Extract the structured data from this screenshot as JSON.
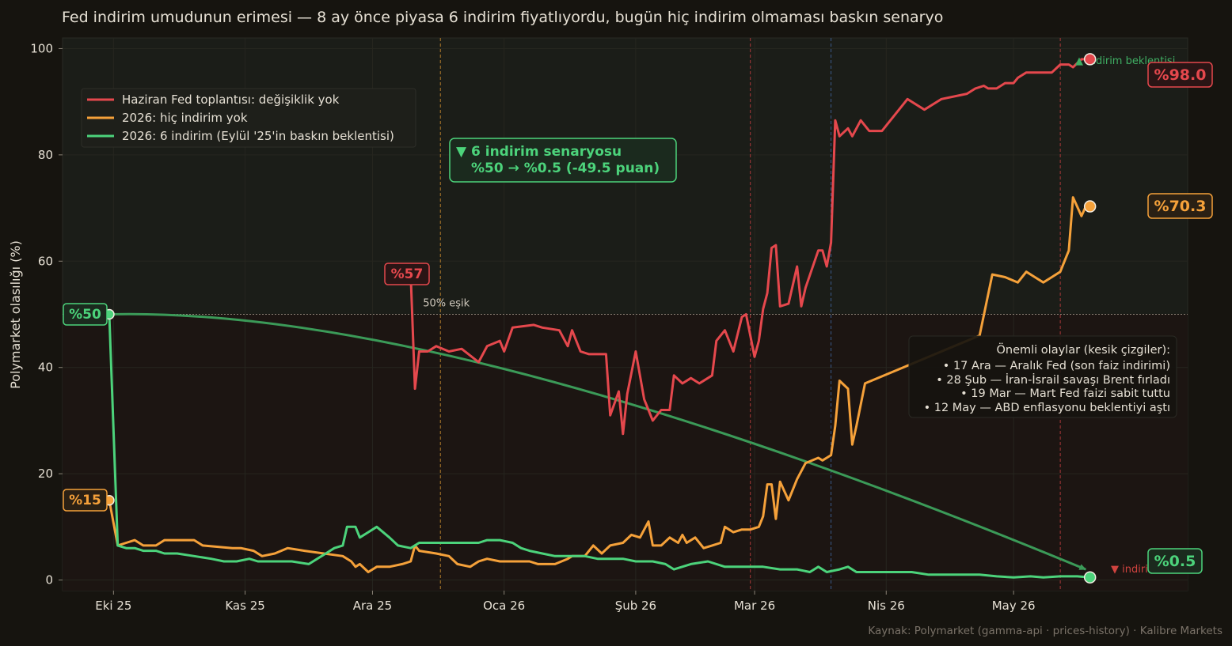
{
  "title": "Fed indirim umudunun erimesi — 8 ay önce piyasa 6 indirim fiyatlıyordu, bugün hiç indirim olmaması baskın senaryo",
  "source": "Kaynak: Polymarket (gamma-api · prices-history)  ·  Kalibre Markets",
  "colors": {
    "background": "#16140f",
    "plot_upper": "#1b1d18",
    "plot_lower": "#1c1512",
    "red": "#e5484d",
    "orange": "#f5a13a",
    "green": "#4cd37b",
    "text": "#e6e0d4",
    "muted": "#8a8276"
  },
  "legend": {
    "items": [
      {
        "label": "Haziran Fed toplantısı: değişiklik yok",
        "color": "#e5484d"
      },
      {
        "label": "2026: hiç indirim yok",
        "color": "#f5a13a"
      },
      {
        "label": "2026: 6 indirim (Eylül '25'in baskın beklentisi)",
        "color": "#4cd37b"
      }
    ]
  },
  "callout": {
    "line1": "▼ 6 indirim senaryosu",
    "line2": "%50 → %0.5  (-49.5 puan)"
  },
  "events_box": {
    "heading": "Önemli olaylar (kesik çizgiler):",
    "items": [
      "• 17 Ara — Aralık Fed (son faiz indirimi)",
      "• 28 Şub — İran-İsrail savaşı Brent fırladı",
      "• 19 Mar — Mart Fed faizi sabit tuttu",
      "• 12 May — ABD enflasyonu beklentiyi aştı"
    ]
  },
  "labels": {
    "threshold": "50% eşik",
    "green_start": "%50",
    "orange_start": "%15",
    "red_start": "%57",
    "red_end": "%98.0",
    "orange_end": "%70.3",
    "green_end": "%0.5",
    "arrow_up": "▲ indirim beklentisi",
    "arrow_down": "▼ indirim"
  },
  "chart_data": {
    "type": "line",
    "title": "Fed indirim umudunun erimesi — 8 ay önce piyasa 6 indirim fiyatlıyordu, bugün hiç indirim olmaması baskın senaryo",
    "xlabel": "",
    "ylabel": "Polymarket olasılığı (%)",
    "ylim": [
      -2,
      102
    ],
    "yticks": [
      0,
      20,
      40,
      60,
      80,
      100
    ],
    "xlim": [
      "2025-09-19",
      "2026-06-11"
    ],
    "xticks": [
      {
        "date": "2025-10-01",
        "label": "Eki 25"
      },
      {
        "date": "2025-11-01",
        "label": "Kas 25"
      },
      {
        "date": "2025-12-01",
        "label": "Ara 25"
      },
      {
        "date": "2026-01-01",
        "label": "Oca 26"
      },
      {
        "date": "2026-02-01",
        "label": "Şub 26"
      },
      {
        "date": "2026-03-01",
        "label": "Mar 26"
      },
      {
        "date": "2026-04-01",
        "label": "Nis 26"
      },
      {
        "date": "2026-05-01",
        "label": "May 26"
      }
    ],
    "threshold": 50,
    "legend_position": "upper-left",
    "grid": true,
    "events": [
      {
        "date": "2025-12-17",
        "color": "#b07b2a"
      },
      {
        "date": "2026-02-28",
        "color": "#a83838"
      },
      {
        "date": "2026-03-19",
        "color": "#3a5a8a"
      },
      {
        "date": "2026-05-12",
        "color": "#a83838"
      }
    ],
    "series": [
      {
        "name": "Haziran Fed toplantısı: değişiklik yok",
        "color": "#e5484d",
        "points": [
          [
            "2025-12-10",
            57.5
          ],
          [
            "2025-12-11",
            36
          ],
          [
            "2025-12-12",
            43
          ],
          [
            "2025-12-14",
            43
          ],
          [
            "2025-12-16",
            44
          ],
          [
            "2025-12-19",
            43
          ],
          [
            "2025-12-22",
            43.5
          ],
          [
            "2025-12-26",
            41
          ],
          [
            "2025-12-28",
            44
          ],
          [
            "2025-12-31",
            45
          ],
          [
            "2026-01-01",
            43
          ],
          [
            "2026-01-03",
            47.5
          ],
          [
            "2026-01-08",
            48
          ],
          [
            "2026-01-10",
            47.5
          ],
          [
            "2026-01-14",
            47
          ],
          [
            "2026-01-16",
            44
          ],
          [
            "2026-01-17",
            47
          ],
          [
            "2026-01-19",
            43
          ],
          [
            "2026-01-21",
            42.5
          ],
          [
            "2026-01-25",
            42.5
          ],
          [
            "2026-01-26",
            31
          ],
          [
            "2026-01-28",
            35.5
          ],
          [
            "2026-01-29",
            27.5
          ],
          [
            "2026-01-30",
            35
          ],
          [
            "2026-02-01",
            43
          ],
          [
            "2026-02-03",
            34
          ],
          [
            "2026-02-05",
            30
          ],
          [
            "2026-02-07",
            32
          ],
          [
            "2026-02-09",
            32
          ],
          [
            "2026-02-10",
            38.5
          ],
          [
            "2026-02-12",
            37
          ],
          [
            "2026-02-14",
            38
          ],
          [
            "2026-02-16",
            37
          ],
          [
            "2026-02-19",
            38.5
          ],
          [
            "2026-02-20",
            45
          ],
          [
            "2026-02-22",
            47
          ],
          [
            "2026-02-24",
            43
          ],
          [
            "2026-02-26",
            49.5
          ],
          [
            "2026-02-27",
            50
          ],
          [
            "2026-03-01",
            42
          ],
          [
            "2026-03-02",
            45
          ],
          [
            "2026-03-03",
            51
          ],
          [
            "2026-03-04",
            54
          ],
          [
            "2026-03-05",
            62.5
          ],
          [
            "2026-03-06",
            63
          ],
          [
            "2026-03-07",
            51.5
          ],
          [
            "2026-03-09",
            52
          ],
          [
            "2026-03-11",
            59
          ],
          [
            "2026-03-12",
            51.5
          ],
          [
            "2026-03-13",
            55
          ],
          [
            "2026-03-16",
            62
          ],
          [
            "2026-03-17",
            62
          ],
          [
            "2026-03-18",
            59
          ],
          [
            "2026-03-19",
            63.5
          ],
          [
            "2026-03-20",
            86.5
          ],
          [
            "2026-03-21",
            83.5
          ],
          [
            "2026-03-23",
            85
          ],
          [
            "2026-03-24",
            83.5
          ],
          [
            "2026-03-26",
            86.5
          ],
          [
            "2026-03-28",
            84.5
          ],
          [
            "2026-03-31",
            84.5
          ],
          [
            "2026-04-06",
            90.5
          ],
          [
            "2026-04-10",
            88.5
          ],
          [
            "2026-04-14",
            90.5
          ],
          [
            "2026-04-20",
            91.5
          ],
          [
            "2026-04-22",
            92.5
          ],
          [
            "2026-04-24",
            93
          ],
          [
            "2026-04-25",
            92.5
          ],
          [
            "2026-04-27",
            92.5
          ],
          [
            "2026-04-29",
            93.5
          ],
          [
            "2026-05-01",
            93.5
          ],
          [
            "2026-05-02",
            94.5
          ],
          [
            "2026-05-04",
            95.5
          ],
          [
            "2026-05-10",
            95.5
          ],
          [
            "2026-05-12",
            97
          ],
          [
            "2026-05-14",
            97
          ],
          [
            "2026-05-15",
            96.5
          ],
          [
            "2026-05-17",
            98
          ],
          [
            "2026-05-19",
            98
          ]
        ]
      },
      {
        "name": "2026: hiç indirim yok",
        "color": "#f5a13a",
        "points": [
          [
            "2025-09-30",
            15
          ],
          [
            "2025-10-02",
            6.5
          ],
          [
            "2025-10-04",
            7
          ],
          [
            "2025-10-06",
            7.5
          ],
          [
            "2025-10-08",
            6.5
          ],
          [
            "2025-10-11",
            6.5
          ],
          [
            "2025-10-13",
            7.5
          ],
          [
            "2025-10-20",
            7.5
          ],
          [
            "2025-10-22",
            6.5
          ],
          [
            "2025-10-29",
            6
          ],
          [
            "2025-10-31",
            6
          ],
          [
            "2025-11-03",
            5.5
          ],
          [
            "2025-11-05",
            4.5
          ],
          [
            "2025-11-08",
            5
          ],
          [
            "2025-11-11",
            6
          ],
          [
            "2025-11-15",
            5.5
          ],
          [
            "2025-11-24",
            4.5
          ],
          [
            "2025-11-26",
            3.5
          ],
          [
            "2025-11-27",
            2.5
          ],
          [
            "2025-11-28",
            3
          ],
          [
            "2025-11-30",
            1.5
          ],
          [
            "2025-12-02",
            2.5
          ],
          [
            "2025-12-05",
            2.5
          ],
          [
            "2025-12-08",
            3
          ],
          [
            "2025-12-10",
            3.5
          ],
          [
            "2025-12-11",
            6.5
          ],
          [
            "2025-12-12",
            5.5
          ],
          [
            "2025-12-16",
            5
          ],
          [
            "2025-12-19",
            4.5
          ],
          [
            "2025-12-21",
            3
          ],
          [
            "2025-12-24",
            2.5
          ],
          [
            "2025-12-26",
            3.5
          ],
          [
            "2025-12-28",
            4
          ],
          [
            "2025-12-31",
            3.5
          ],
          [
            "2026-01-04",
            3.5
          ],
          [
            "2026-01-07",
            3.5
          ],
          [
            "2026-01-09",
            3
          ],
          [
            "2026-01-13",
            3
          ],
          [
            "2026-01-16",
            4
          ],
          [
            "2026-01-17",
            4.5
          ],
          [
            "2026-01-20",
            4.5
          ],
          [
            "2026-01-22",
            6.5
          ],
          [
            "2026-01-24",
            5
          ],
          [
            "2026-01-26",
            6.5
          ],
          [
            "2026-01-29",
            7
          ],
          [
            "2026-01-31",
            8.5
          ],
          [
            "2026-02-02",
            8
          ],
          [
            "2026-02-04",
            11
          ],
          [
            "2026-02-05",
            6.5
          ],
          [
            "2026-02-07",
            6.5
          ],
          [
            "2026-02-09",
            8
          ],
          [
            "2026-02-11",
            7
          ],
          [
            "2026-02-12",
            8.5
          ],
          [
            "2026-02-13",
            7
          ],
          [
            "2026-02-15",
            8
          ],
          [
            "2026-02-17",
            6
          ],
          [
            "2026-02-19",
            6.5
          ],
          [
            "2026-02-21",
            7
          ],
          [
            "2026-02-22",
            10
          ],
          [
            "2026-02-24",
            9
          ],
          [
            "2026-02-26",
            9.5
          ],
          [
            "2026-02-28",
            9.5
          ],
          [
            "2026-03-02",
            10
          ],
          [
            "2026-03-03",
            12
          ],
          [
            "2026-03-04",
            18
          ],
          [
            "2026-03-05",
            18
          ],
          [
            "2026-03-06",
            11.5
          ],
          [
            "2026-03-07",
            18.5
          ],
          [
            "2026-03-09",
            15
          ],
          [
            "2026-03-11",
            19
          ],
          [
            "2026-03-13",
            22
          ],
          [
            "2026-03-16",
            23
          ],
          [
            "2026-03-17",
            22.5
          ],
          [
            "2026-03-19",
            23.5
          ],
          [
            "2026-03-20",
            29
          ],
          [
            "2026-03-21",
            37.5
          ],
          [
            "2026-03-23",
            36
          ],
          [
            "2026-03-24",
            25.5
          ],
          [
            "2026-03-25",
            29
          ],
          [
            "2026-03-27",
            37
          ],
          [
            "2026-04-23",
            46
          ],
          [
            "2026-04-26",
            57.5
          ],
          [
            "2026-04-29",
            57
          ],
          [
            "2026-05-02",
            56
          ],
          [
            "2026-05-04",
            58
          ],
          [
            "2026-05-06",
            57
          ],
          [
            "2026-05-08",
            56
          ],
          [
            "2026-05-10",
            57
          ],
          [
            "2026-05-12",
            58
          ],
          [
            "2026-05-14",
            62
          ],
          [
            "2026-05-15",
            72
          ],
          [
            "2026-05-17",
            68.5
          ],
          [
            "2026-05-18",
            70.3
          ],
          [
            "2026-05-19",
            70.3
          ]
        ]
      },
      {
        "name": "2026: 6 indirim (Eylül '25'in baskın beklentisi)",
        "color": "#4cd37b",
        "points": [
          [
            "2025-09-30",
            50
          ],
          [
            "2025-10-02",
            6.5
          ],
          [
            "2025-10-04",
            6
          ],
          [
            "2025-10-06",
            6
          ],
          [
            "2025-10-08",
            5.5
          ],
          [
            "2025-10-11",
            5.5
          ],
          [
            "2025-10-13",
            5
          ],
          [
            "2025-10-16",
            5
          ],
          [
            "2025-10-20",
            4.5
          ],
          [
            "2025-10-24",
            4
          ],
          [
            "2025-10-27",
            3.5
          ],
          [
            "2025-10-30",
            3.5
          ],
          [
            "2025-11-02",
            4
          ],
          [
            "2025-11-04",
            3.5
          ],
          [
            "2025-11-08",
            3.5
          ],
          [
            "2025-11-12",
            3.5
          ],
          [
            "2025-11-16",
            3
          ],
          [
            "2025-11-18",
            4
          ],
          [
            "2025-11-20",
            5
          ],
          [
            "2025-11-22",
            6
          ],
          [
            "2025-11-24",
            6.5
          ],
          [
            "2025-11-25",
            10
          ],
          [
            "2025-11-27",
            10
          ],
          [
            "2025-11-28",
            8
          ],
          [
            "2025-11-30",
            9
          ],
          [
            "2025-12-02",
            10
          ],
          [
            "2025-12-05",
            8
          ],
          [
            "2025-12-07",
            6.5
          ],
          [
            "2025-12-10",
            6
          ],
          [
            "2025-12-12",
            7
          ],
          [
            "2025-12-17",
            7
          ],
          [
            "2025-12-21",
            7
          ],
          [
            "2025-12-26",
            7
          ],
          [
            "2025-12-28",
            7.5
          ],
          [
            "2025-12-31",
            7.5
          ],
          [
            "2026-01-03",
            7
          ],
          [
            "2026-01-05",
            6
          ],
          [
            "2026-01-07",
            5.5
          ],
          [
            "2026-01-10",
            5
          ],
          [
            "2026-01-13",
            4.5
          ],
          [
            "2026-01-17",
            4.5
          ],
          [
            "2026-01-20",
            4.5
          ],
          [
            "2026-01-23",
            4
          ],
          [
            "2026-01-26",
            4
          ],
          [
            "2026-01-29",
            4
          ],
          [
            "2026-02-01",
            3.5
          ],
          [
            "2026-02-05",
            3.5
          ],
          [
            "2026-02-08",
            3
          ],
          [
            "2026-02-10",
            2
          ],
          [
            "2026-02-14",
            3
          ],
          [
            "2026-02-18",
            3.5
          ],
          [
            "2026-02-22",
            2.5
          ],
          [
            "2026-02-27",
            2.5
          ],
          [
            "2026-03-03",
            2.5
          ],
          [
            "2026-03-07",
            2
          ],
          [
            "2026-03-11",
            2
          ],
          [
            "2026-03-14",
            1.5
          ],
          [
            "2026-03-16",
            2.5
          ],
          [
            "2026-03-18",
            1.5
          ],
          [
            "2026-03-21",
            2
          ],
          [
            "2026-03-23",
            2.5
          ],
          [
            "2026-03-25",
            1.5
          ],
          [
            "2026-03-28",
            1.5
          ],
          [
            "2026-04-01",
            1.5
          ],
          [
            "2026-04-07",
            1.5
          ],
          [
            "2026-04-11",
            1
          ],
          [
            "2026-04-17",
            1
          ],
          [
            "2026-04-23",
            1
          ],
          [
            "2026-04-27",
            0.7
          ],
          [
            "2026-05-01",
            0.5
          ],
          [
            "2026-05-05",
            0.7
          ],
          [
            "2026-05-08",
            0.5
          ],
          [
            "2026-05-12",
            0.7
          ],
          [
            "2026-05-16",
            0.7
          ],
          [
            "2026-05-19",
            0.5
          ]
        ]
      }
    ],
    "trend_arrow": {
      "from": [
        "2025-09-30",
        50
      ],
      "to": [
        "2026-05-18",
        2
      ],
      "color": "#3b9a58"
    }
  }
}
